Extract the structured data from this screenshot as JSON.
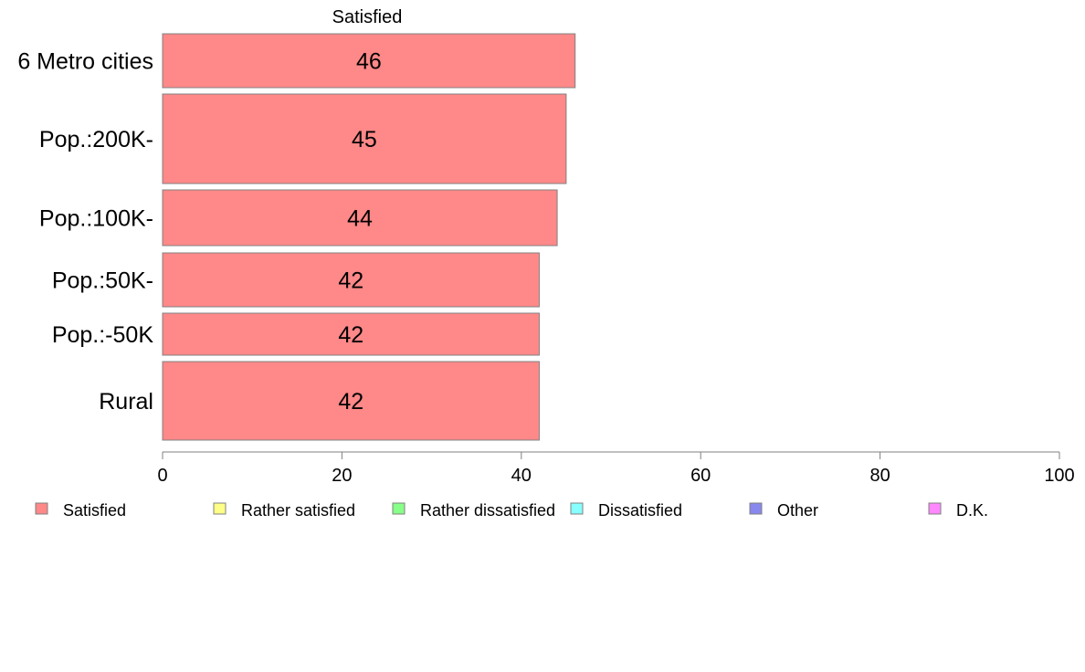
{
  "chart_data": {
    "type": "bar",
    "orientation": "horizontal",
    "stacked": true,
    "title": "Satisfied",
    "categories": [
      "6 Metro cities",
      "Pop.:200K-",
      "Pop.:100K-",
      "Pop.:50K-",
      "Pop.:-50K",
      "Rural"
    ],
    "series": [
      {
        "name": "Satisfied",
        "values": [
          46,
          45,
          44,
          42,
          42,
          42
        ],
        "color": "#ff8888"
      }
    ],
    "xlim": [
      0,
      100
    ],
    "xticks": [
      0,
      20,
      40,
      60,
      80,
      100
    ],
    "grid": false,
    "legend_position": "bottom",
    "legend": [
      {
        "label": "Satisfied",
        "color": "#ff8888"
      },
      {
        "label": "Rather satisfied",
        "color": "#ffff88"
      },
      {
        "label": "Rather dissatisfied",
        "color": "#88ff88"
      },
      {
        "label": "Dissatisfied",
        "color": "#88ffff"
      },
      {
        "label": "Other",
        "color": "#8888ee"
      },
      {
        "label": "D.K.",
        "color": "#ff88ff"
      }
    ]
  }
}
